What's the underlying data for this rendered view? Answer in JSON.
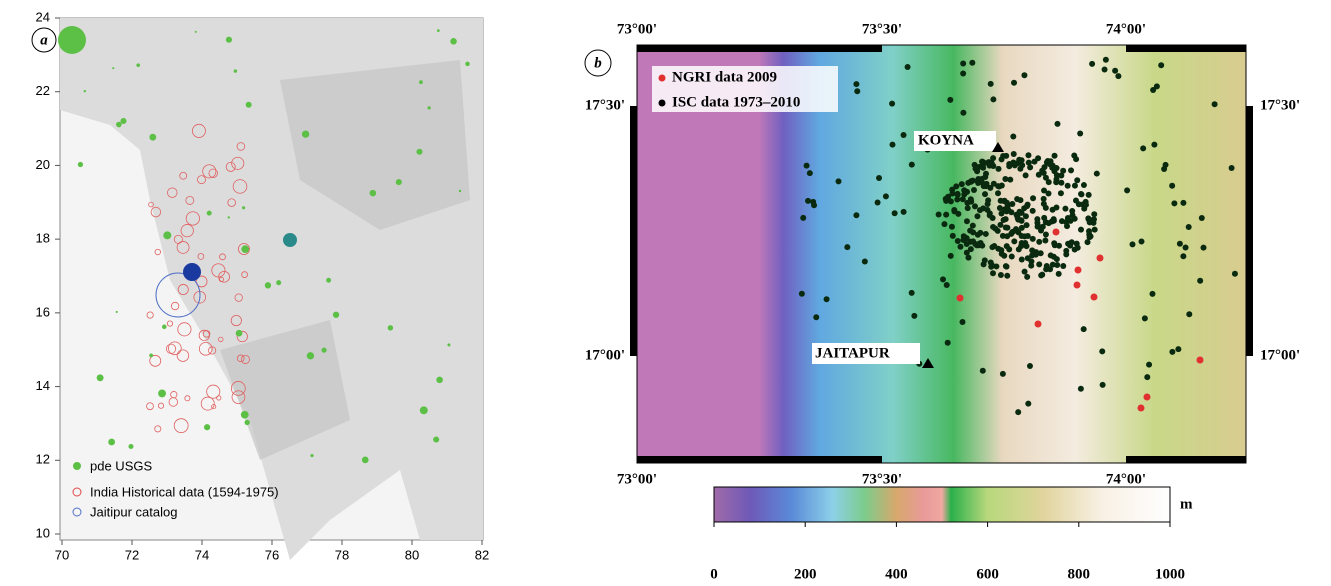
{
  "panel_a": {
    "label": "a",
    "xlim": [
      70,
      82
    ],
    "ylim": [
      10,
      24
    ],
    "xticks": [
      70,
      72,
      74,
      76,
      78,
      80,
      82
    ],
    "yticks": [
      10,
      12,
      14,
      16,
      18,
      20,
      22,
      24
    ],
    "legend": [
      "pde  USGS",
      "India Historical data (1594-1975)",
      "Jaitipur catalog"
    ]
  },
  "panel_b": {
    "label": "b",
    "lon_ticks": [
      "73°00'",
      "73°30'",
      "74°00'"
    ],
    "lat_ticks": [
      "17°30'",
      "17°00'"
    ],
    "legend": [
      "NGRI data 2009",
      "ISC data 1973–2010"
    ],
    "places": [
      "KOYNA",
      "JAITAPUR"
    ],
    "colorbar": {
      "ticks": [
        0,
        200,
        400,
        600,
        800,
        1000
      ],
      "unit": "m"
    }
  }
}
